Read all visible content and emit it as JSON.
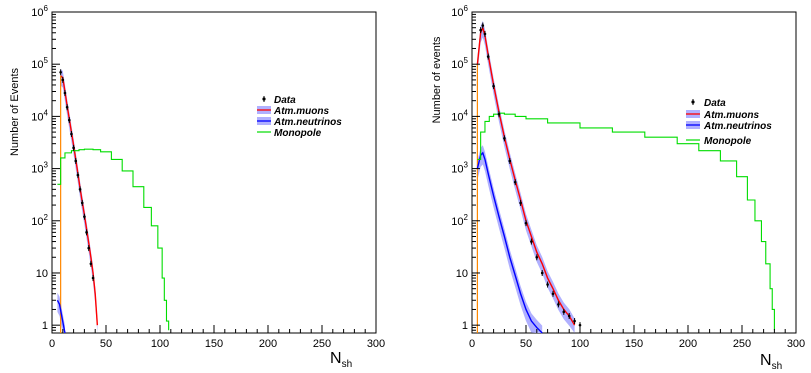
{
  "chart_data": [
    {
      "type": "line",
      "ylabel": "Number of Events",
      "xlabel": "N",
      "xlabel_sub": "sh",
      "xlim": [
        0,
        300
      ],
      "ylim_log10": [
        -0.15,
        6
      ],
      "log_y": true,
      "grid": false,
      "legend_position": "upper-right",
      "x_ticks": [
        "0",
        "50",
        "100",
        "150",
        "200",
        "250",
        "300"
      ],
      "y_ticks": [
        {
          "base": "1",
          "exp": ""
        },
        {
          "base": "10",
          "exp": ""
        },
        {
          "base": "10",
          "exp": "2"
        },
        {
          "base": "10",
          "exp": "3"
        },
        {
          "base": "10",
          "exp": "4"
        },
        {
          "base": "10",
          "exp": "5"
        },
        {
          "base": "10",
          "exp": "6"
        }
      ],
      "legend": {
        "data": "Data",
        "muons": "Atm.muons",
        "neutrinos": "Atm.neutrinos",
        "monopole": "Monopole"
      },
      "colors": {
        "data": "#000000",
        "muons": "#ff0000",
        "muons_band": "#b0b0ff",
        "neutrinos": "#0000ff",
        "neutrinos_band": "#b0b0ff",
        "monopole": "#00dd00",
        "atm_edge": "#ff8800"
      },
      "series": [
        {
          "name": "Atm.muons",
          "x": [
            8,
            10,
            12,
            14,
            16,
            18,
            20,
            22,
            24,
            26,
            28,
            30,
            32,
            34,
            36,
            38,
            40,
            42
          ],
          "y": [
            60000,
            55000,
            30000,
            16000,
            9000,
            5000,
            2800,
            1500,
            800,
            420,
            230,
            130,
            70,
            38,
            20,
            10,
            4,
            1
          ]
        },
        {
          "name": "Atm.neutrinos",
          "x": [
            5,
            7,
            9,
            11,
            12
          ],
          "y": [
            3,
            2.5,
            1.5,
            0.9,
            0.7
          ]
        },
        {
          "name": "Monopole",
          "x": [
            5,
            8,
            12,
            18,
            25,
            30,
            38,
            45,
            55,
            65,
            75,
            85,
            92,
            98,
            102,
            104,
            106,
            108
          ],
          "y": [
            500,
            1600,
            2000,
            2200,
            2300,
            2350,
            2300,
            2100,
            1500,
            900,
            450,
            180,
            80,
            30,
            8,
            3,
            1.2,
            0.8
          ]
        },
        {
          "name": "Data",
          "x": [
            8,
            10,
            12,
            14,
            16,
            18,
            20,
            22,
            24,
            26,
            28,
            30,
            32,
            34,
            36,
            38
          ],
          "y": [
            70000,
            50000,
            28000,
            15000,
            8500,
            4600,
            2500,
            1400,
            750,
            400,
            220,
            120,
            60,
            30,
            15,
            8
          ]
        }
      ]
    },
    {
      "type": "line",
      "ylabel": "Number of events",
      "xlabel": "N",
      "xlabel_sub": "sh",
      "xlim": [
        0,
        300
      ],
      "ylim_log10": [
        -0.15,
        6
      ],
      "log_y": true,
      "grid": false,
      "legend_position": "upper-right",
      "x_ticks": [
        "0",
        "50",
        "100",
        "150",
        "200",
        "250",
        "300"
      ],
      "y_ticks": [
        {
          "base": "1",
          "exp": ""
        },
        {
          "base": "10",
          "exp": ""
        },
        {
          "base": "10",
          "exp": "2"
        },
        {
          "base": "10",
          "exp": "3"
        },
        {
          "base": "10",
          "exp": "4"
        },
        {
          "base": "10",
          "exp": "5"
        },
        {
          "base": "10",
          "exp": "6"
        }
      ],
      "legend": {
        "data": "Data",
        "muons": "Atm.muons",
        "neutrinos": "Atm.neutrinos",
        "monopole": "Monopole"
      },
      "colors": {
        "data": "#000000",
        "muons": "#ff0000",
        "muons_band": "#b0b0ff",
        "neutrinos": "#0000ff",
        "neutrinos_band": "#b0b0ff",
        "monopole": "#00dd00",
        "atm_edge": "#ff8800"
      },
      "series": [
        {
          "name": "Atm.muons",
          "x": [
            5,
            8,
            10,
            12,
            15,
            20,
            25,
            30,
            35,
            40,
            45,
            50,
            55,
            60,
            65,
            70,
            75,
            80,
            85,
            90,
            95
          ],
          "y": [
            100000,
            400000,
            500000,
            350000,
            150000,
            40000,
            12000,
            4000,
            1500,
            600,
            250,
            100,
            50,
            25,
            15,
            8,
            5,
            3,
            2,
            1.5,
            1
          ]
        },
        {
          "name": "Atm.neutrinos",
          "x": [
            5,
            8,
            10,
            12,
            15,
            20,
            25,
            30,
            35,
            40,
            45,
            50,
            55,
            60,
            65
          ],
          "y": [
            1000,
            1800,
            2000,
            1500,
            800,
            300,
            120,
            50,
            20,
            9,
            4,
            2,
            1.2,
            0.9,
            0.7
          ]
        },
        {
          "name": "Monopole",
          "x": [
            5,
            8,
            12,
            16,
            20,
            25,
            30,
            40,
            50,
            70,
            100,
            130,
            160,
            190,
            210,
            230,
            245,
            255,
            262,
            268,
            272,
            276,
            278,
            280
          ],
          "y": [
            1500,
            5000,
            8000,
            10000,
            11000,
            11500,
            11000,
            10000,
            9000,
            7500,
            6000,
            5000,
            4000,
            3000,
            2200,
            1400,
            700,
            250,
            100,
            40,
            15,
            5,
            2,
            0.8
          ]
        },
        {
          "name": "Data",
          "x": [
            8,
            10,
            12,
            15,
            20,
            25,
            30,
            35,
            40,
            45,
            50,
            55,
            60,
            65,
            70,
            75,
            80,
            85,
            90,
            95,
            100
          ],
          "y": [
            450000,
            550000,
            380000,
            140000,
            38000,
            11000,
            3800,
            1400,
            550,
            220,
            90,
            40,
            20,
            10,
            6,
            4,
            2.5,
            1.8,
            1.5,
            1.2,
            1
          ]
        }
      ]
    }
  ]
}
